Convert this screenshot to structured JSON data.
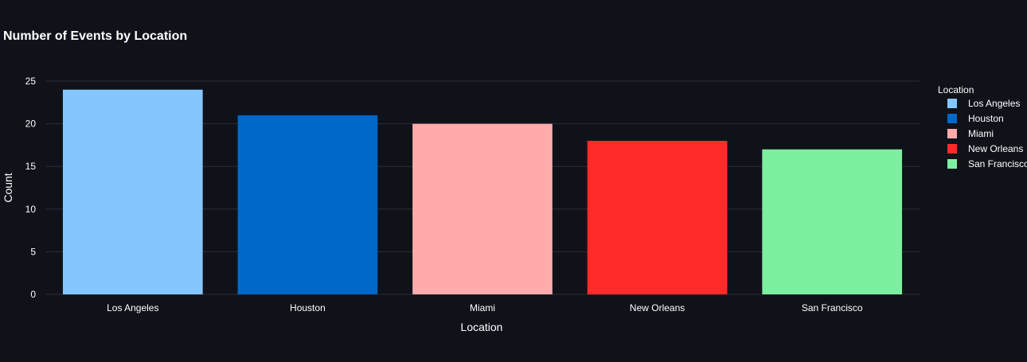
{
  "chart_data": {
    "type": "bar",
    "title": "Number of Events by Location",
    "xlabel": "Location",
    "ylabel": "Count",
    "categories": [
      "Los Angeles",
      "Houston",
      "Miami",
      "New Orleans",
      "San Francisco"
    ],
    "values": [
      24,
      21,
      20,
      18,
      17
    ],
    "colors": [
      "#85c6ff",
      "#0068c9",
      "#ffabab",
      "#ff2b2b",
      "#7defa1"
    ],
    "ylim": [
      0,
      25
    ],
    "yticks": [
      0,
      5,
      10,
      15,
      20,
      25
    ],
    "grid": true,
    "legend": {
      "title": "Location",
      "placement": "right",
      "entries": [
        "Los Angeles",
        "Houston",
        "Miami",
        "New Orleans",
        "San Francisco"
      ]
    }
  },
  "theme": {
    "background": "#10121a",
    "text": "#ffffff",
    "gridline": "#2b2e36"
  }
}
